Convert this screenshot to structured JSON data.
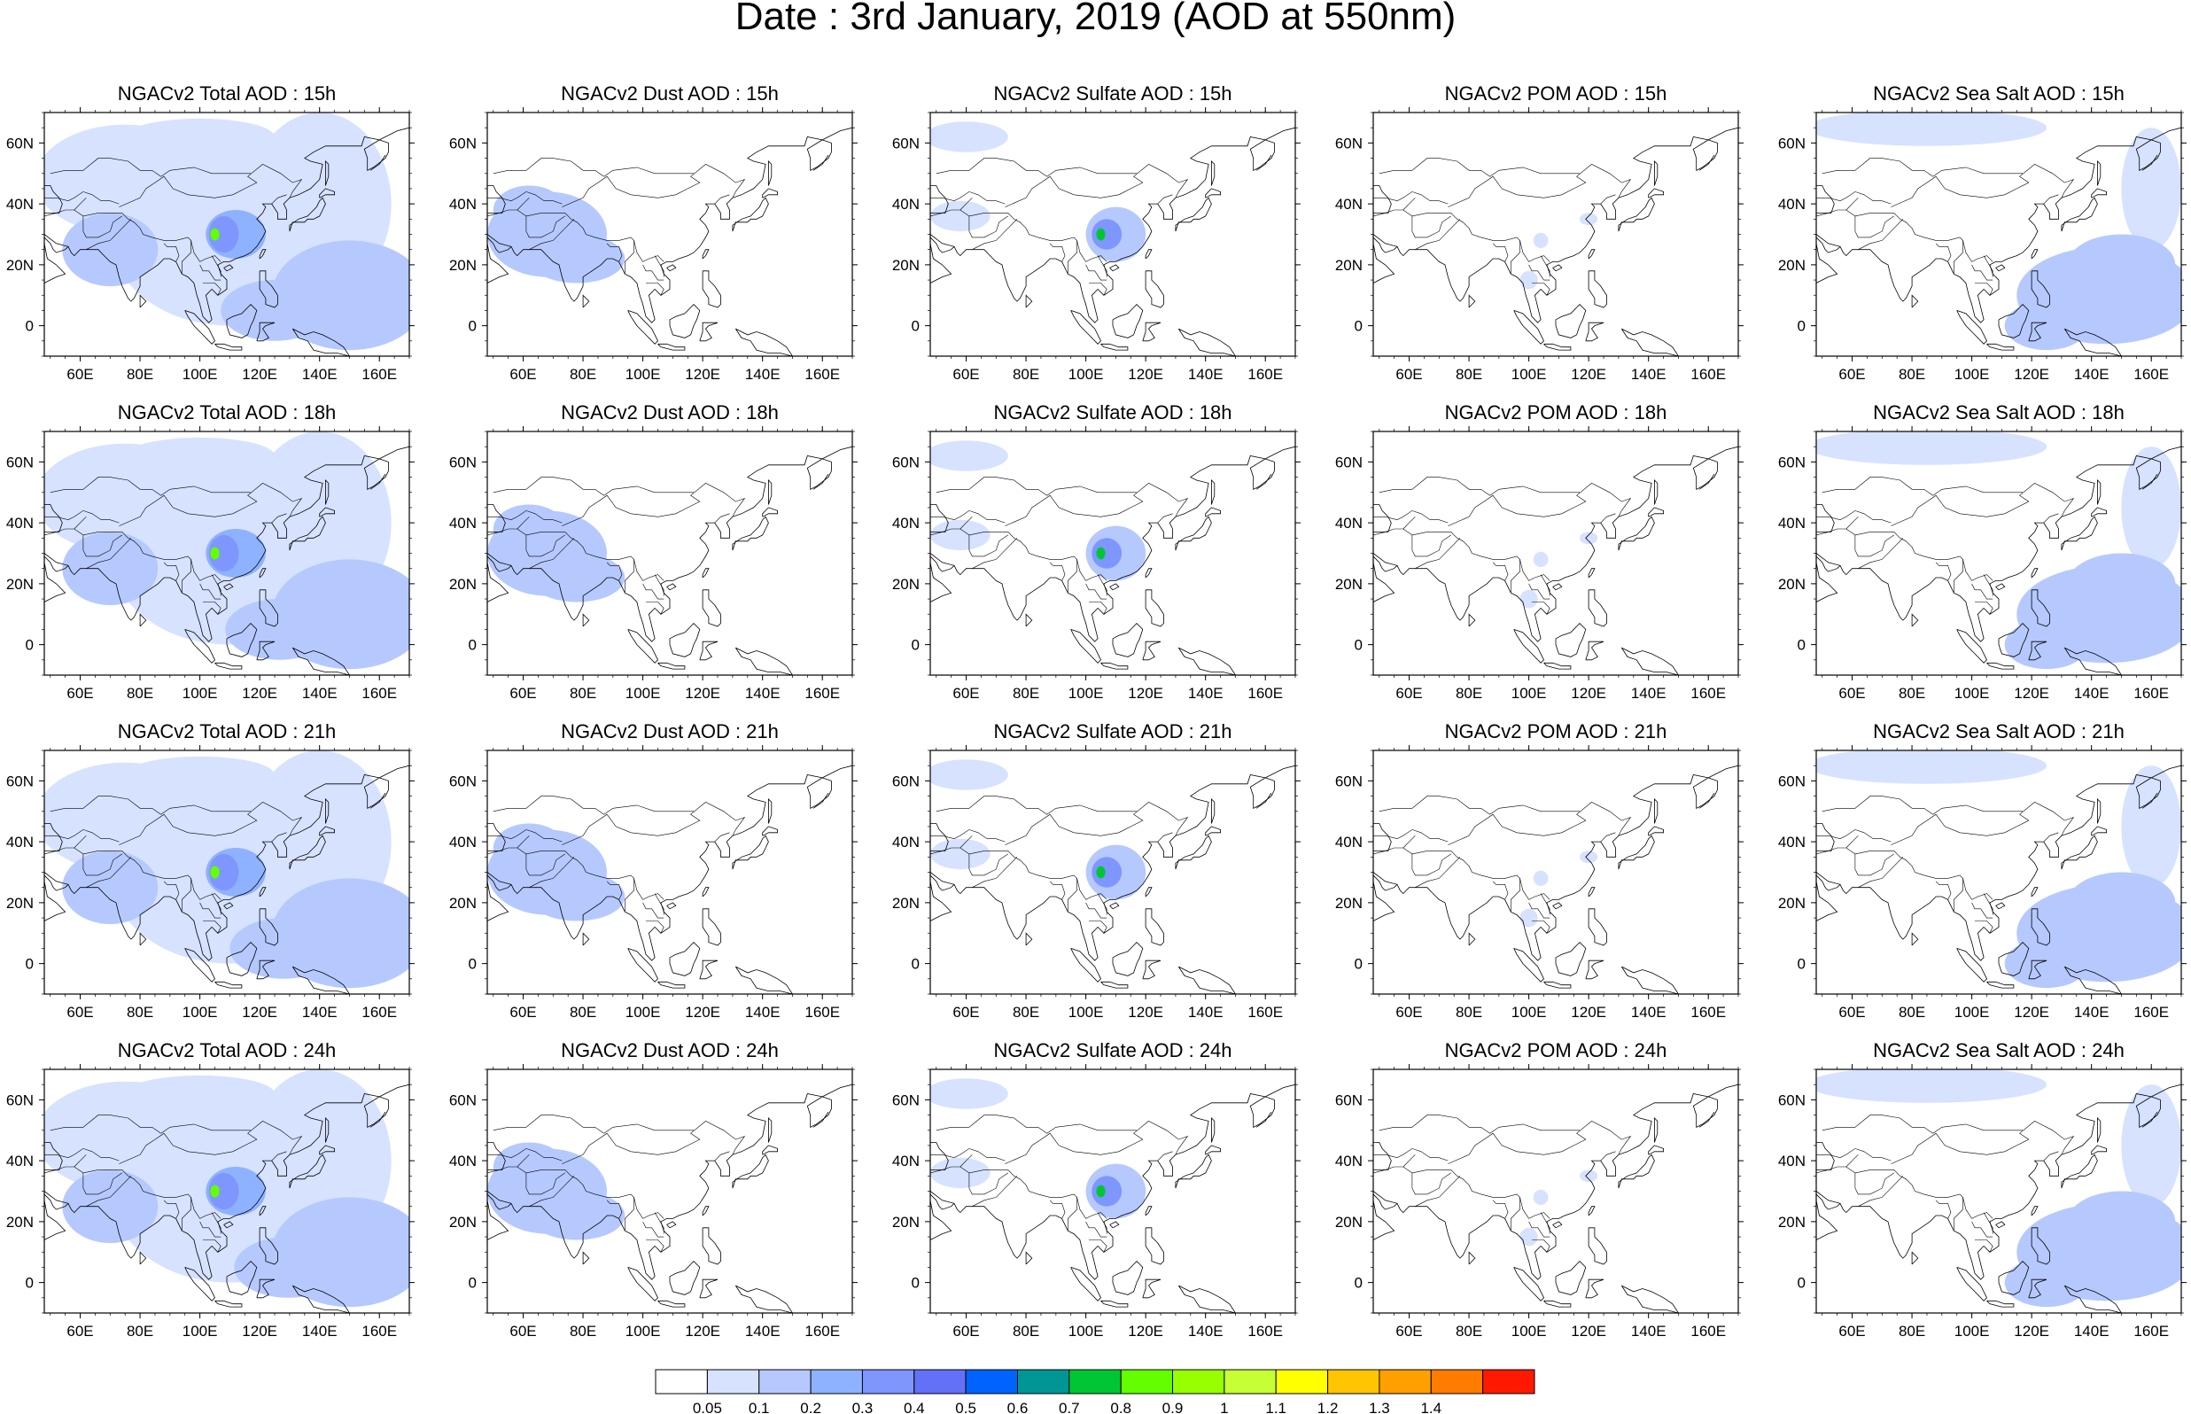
{
  "title": "Date : 3rd January, 2019 (AOD at 550nm)",
  "panels": [
    {
      "title": "NGACv2 Total AOD : 15h",
      "species": "total"
    },
    {
      "title": "NGACv2 Dust AOD : 15h",
      "species": "dust"
    },
    {
      "title": "NGACv2 Sulfate AOD : 15h",
      "species": "sulfate"
    },
    {
      "title": "NGACv2 POM AOD : 15h",
      "species": "pom"
    },
    {
      "title": "NGACv2 Sea Salt AOD : 15h",
      "species": "seasalt"
    },
    {
      "title": "NGACv2 Total AOD : 18h",
      "species": "total"
    },
    {
      "title": "NGACv2 Dust AOD : 18h",
      "species": "dust"
    },
    {
      "title": "NGACv2 Sulfate AOD : 18h",
      "species": "sulfate"
    },
    {
      "title": "NGACv2 POM AOD : 18h",
      "species": "pom"
    },
    {
      "title": "NGACv2 Sea Salt AOD : 18h",
      "species": "seasalt"
    },
    {
      "title": "NGACv2 Total AOD : 21h",
      "species": "total"
    },
    {
      "title": "NGACv2 Dust AOD : 21h",
      "species": "dust"
    },
    {
      "title": "NGACv2 Sulfate AOD : 21h",
      "species": "sulfate"
    },
    {
      "title": "NGACv2 POM AOD : 21h",
      "species": "pom"
    },
    {
      "title": "NGACv2 Sea Salt AOD : 21h",
      "species": "seasalt"
    },
    {
      "title": "NGACv2 Total AOD : 24h",
      "species": "total"
    },
    {
      "title": "NGACv2 Dust AOD : 24h",
      "species": "dust"
    },
    {
      "title": "NGACv2 Sulfate AOD : 24h",
      "species": "sulfate"
    },
    {
      "title": "NGACv2 POM AOD : 24h",
      "species": "pom"
    },
    {
      "title": "NGACv2 Sea Salt  AOD : 24h",
      "species": "seasalt"
    }
  ],
  "map": {
    "lon_ticks": [
      "60E",
      "80E",
      "100E",
      "120E",
      "140E",
      "160E"
    ],
    "lon_tick_values": [
      60,
      80,
      100,
      120,
      140,
      160
    ],
    "lat_ticks": [
      "60N",
      "40N",
      "20N",
      "0"
    ],
    "lat_tick_values": [
      60,
      40,
      20,
      0
    ],
    "lon_range": [
      48,
      170
    ],
    "lat_range": [
      -10,
      70
    ]
  },
  "colorbar": {
    "labels": [
      "0.05",
      "0.1",
      "0.2",
      "0.3",
      "0.4",
      "0.5",
      "0.6",
      "0.7",
      "0.8",
      "0.9",
      "1",
      "1.1",
      "1.2",
      "1.3",
      "1.4"
    ],
    "colors": [
      "#ffffff",
      "#d6e2ff",
      "#b5c9ff",
      "#8eb2ff",
      "#7f96ff",
      "#6370f8",
      "#0063ff",
      "#009696",
      "#00c633",
      "#63ff00",
      "#96ff00",
      "#c6ff33",
      "#ffff00",
      "#ffc600",
      "#ffa000",
      "#ff7c00",
      "#ff1900"
    ]
  },
  "chart_data": {
    "type": "heatmap",
    "title": "Date : 3rd January, 2019 (AOD at 550nm)",
    "xlabel": "",
    "ylabel": "",
    "x_ticks": [
      "60E",
      "80E",
      "100E",
      "120E",
      "140E",
      "160E"
    ],
    "y_ticks": [
      "60N",
      "40N",
      "20N",
      "0"
    ],
    "xlim": [
      48,
      170
    ],
    "ylim": [
      -10,
      70
    ],
    "color_levels": [
      0.05,
      0.1,
      0.2,
      0.3,
      0.4,
      0.5,
      0.6,
      0.7,
      0.8,
      0.9,
      1,
      1.1,
      1.2,
      1.3,
      1.4
    ],
    "forecast_hours": [
      "15h",
      "18h",
      "21h",
      "24h"
    ],
    "species": [
      "Total",
      "Dust",
      "Sulfate",
      "POM",
      "Sea Salt"
    ],
    "max_feature": {
      "lon": 105,
      "lat": 30,
      "total_value_approx": 0.9
    }
  }
}
